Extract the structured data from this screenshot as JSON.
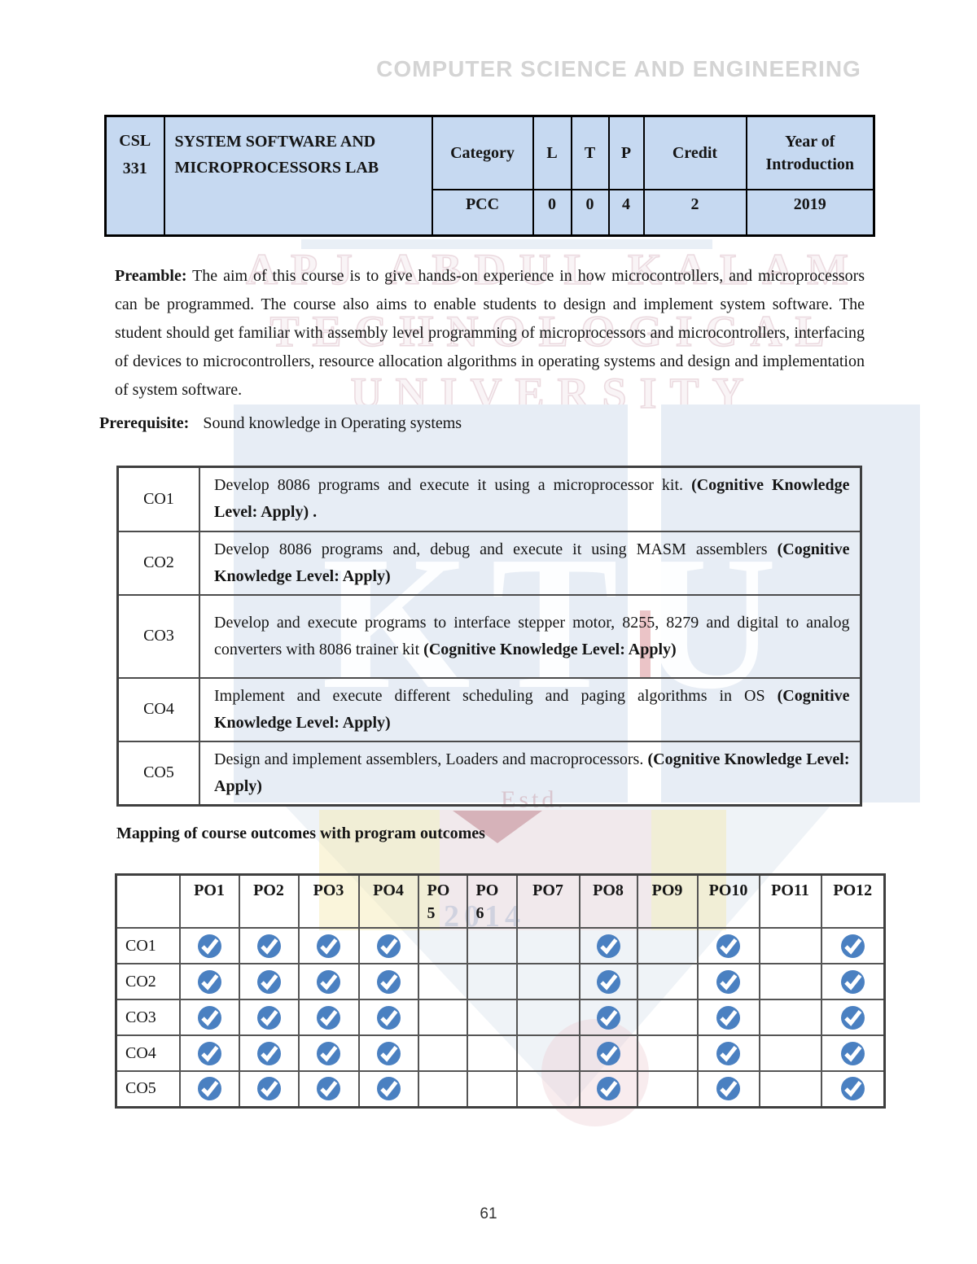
{
  "page": {
    "department_header": "COMPUTER SCIENCE AND ENGINEERING",
    "page_number": "61"
  },
  "colors": {
    "course_table_bg": "#c6d9f1",
    "check_icon": "#4a80c1"
  },
  "course_table": {
    "code": "CSL 331",
    "title": "SYSTEM SOFTWARE AND MICROPROCESSORS LAB",
    "headers": [
      "Category",
      "L",
      "T",
      "P",
      "Credit",
      "Year of Introduction"
    ],
    "values": [
      "PCC",
      "0",
      "0",
      "4",
      "2",
      "2019"
    ]
  },
  "preamble": {
    "label": "Preamble:",
    "text": "The aim of this course is to give  hands-on experience in how microcontrollers, and microprocessors can be programmed. The course also aims to enable students to design and implement system software. The student should get familiar with assembly level programming of microprocessors and microcontrollers, interfacing of devices to microcontrollers, resource allocation algorithms in operating systems and design and implementation of system software."
  },
  "prerequisite": {
    "label": "Prerequisite:",
    "text": "Sound knowledge in Operating systems"
  },
  "course_outcomes": {
    "rows": [
      {
        "id": "CO1",
        "text": "Develop 8086 programs and execute it using a microprocessor kit.",
        "bold": "(Cognitive Knowledge Level: Apply) ."
      },
      {
        "id": "CO2",
        "text": "Develop 8086 programs and,  debug  and execute it using  MASM assemblers",
        "bold": "(Cognitive Knowledge Level: Apply)"
      },
      {
        "id": "CO3",
        "text": "Develop and execute programs to interface stepper motor, 8255, 8279  and digital to analog converters  with 8086 trainer kit",
        "bold": "(Cognitive Knowledge Level: Apply)"
      },
      {
        "id": "CO4",
        "text": "Implement and execute different scheduling and paging algorithms in OS",
        "bold": "(Cognitive Knowledge Level: Apply)"
      },
      {
        "id": "CO5",
        "text": "Design and implement  assemblers, Loaders and macroprocessors.",
        "bold": "(Cognitive Knowledge Level: Apply)"
      }
    ]
  },
  "mapping": {
    "heading": "Mapping of course outcomes with program outcomes",
    "columns": [
      "PO1",
      "PO2",
      "PO3",
      "PO4",
      "PO\n5",
      "PO\n6",
      "PO7",
      "PO8",
      "PO9",
      "PO10",
      "PO11",
      "PO12"
    ],
    "rows": [
      {
        "id": "CO1",
        "marks": [
          1,
          1,
          1,
          1,
          0,
          0,
          0,
          1,
          0,
          1,
          0,
          1
        ]
      },
      {
        "id": "CO2",
        "marks": [
          1,
          1,
          1,
          1,
          0,
          0,
          0,
          1,
          0,
          1,
          0,
          1
        ]
      },
      {
        "id": "CO3",
        "marks": [
          1,
          1,
          1,
          1,
          0,
          0,
          0,
          1,
          0,
          1,
          0,
          1
        ]
      },
      {
        "id": "CO4",
        "marks": [
          1,
          1,
          1,
          1,
          0,
          0,
          0,
          1,
          0,
          1,
          0,
          1
        ]
      },
      {
        "id": "CO5",
        "marks": [
          1,
          1,
          1,
          1,
          0,
          0,
          0,
          1,
          0,
          1,
          0,
          1
        ]
      }
    ]
  },
  "watermark": {
    "line1": "APJ ABDUL KALAM",
    "line2": "TECHNOLOGICAL",
    "line3": "UNIVERSITY",
    "ktu": "KTU",
    "estd": "Estd.",
    "year": "2014"
  }
}
